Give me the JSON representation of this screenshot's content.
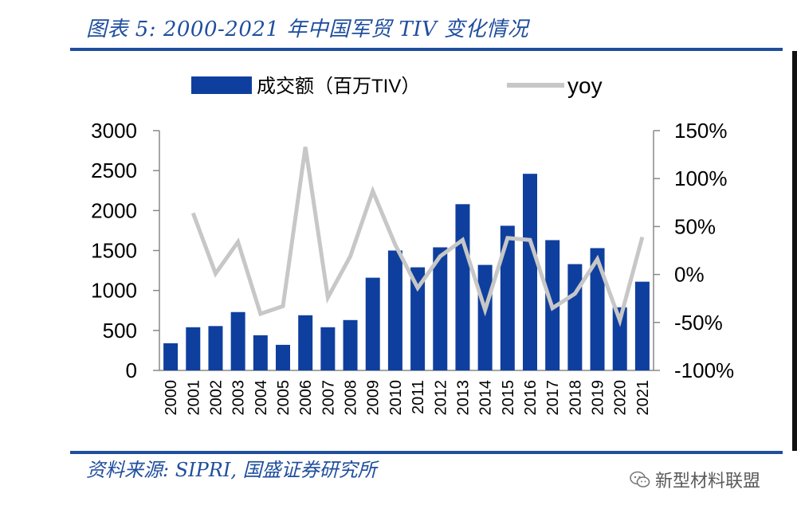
{
  "header": {
    "title": "图表 5: 2000-2021 年中国军贸 TIV 变化情况"
  },
  "footer": {
    "source": "资料来源: SIPRI, 国盛证券研究所",
    "watermark_text": "新型材料联盟",
    "watermark_icon": "wechat-icon"
  },
  "chart_data": {
    "type": "bar",
    "categories": [
      "2000",
      "2001",
      "2002",
      "2003",
      "2004",
      "2005",
      "2006",
      "2007",
      "2008",
      "2009",
      "2010",
      "2011",
      "2012",
      "2013",
      "2014",
      "2015",
      "2016",
      "2017",
      "2018",
      "2019",
      "2020",
      "2021"
    ],
    "series": [
      {
        "name": "成交额（百万TIV）",
        "type": "bar",
        "axis": "left",
        "color": "#0f3f9e",
        "values": [
          340,
          540,
          555,
          730,
          440,
          320,
          690,
          540,
          630,
          1160,
          1500,
          1290,
          1540,
          2080,
          1320,
          1810,
          2460,
          1630,
          1330,
          1530,
          790,
          1110
        ]
      },
      {
        "name": "yoy",
        "type": "line",
        "axis": "right",
        "color": "#c7c7c7",
        "values": [
          null,
          64,
          1,
          34,
          -41,
          -33,
          133,
          -24,
          19,
          87,
          31,
          -14,
          19,
          36,
          -37,
          38,
          36,
          -35,
          -20,
          16,
          -48,
          39
        ]
      }
    ],
    "y_left": {
      "ylim": [
        0,
        3000
      ],
      "ticks": [
        "0",
        "500",
        "1000",
        "1500",
        "2000",
        "2500",
        "3000"
      ]
    },
    "y_right": {
      "ylim": [
        -100,
        150
      ],
      "ticks": [
        "-100%",
        "-50%",
        "0%",
        "50%",
        "100%",
        "150%"
      ]
    },
    "legend": {
      "position": "top",
      "bar_label": "成交额（百万TIV）",
      "line_label": "yoy"
    },
    "grid": false
  }
}
